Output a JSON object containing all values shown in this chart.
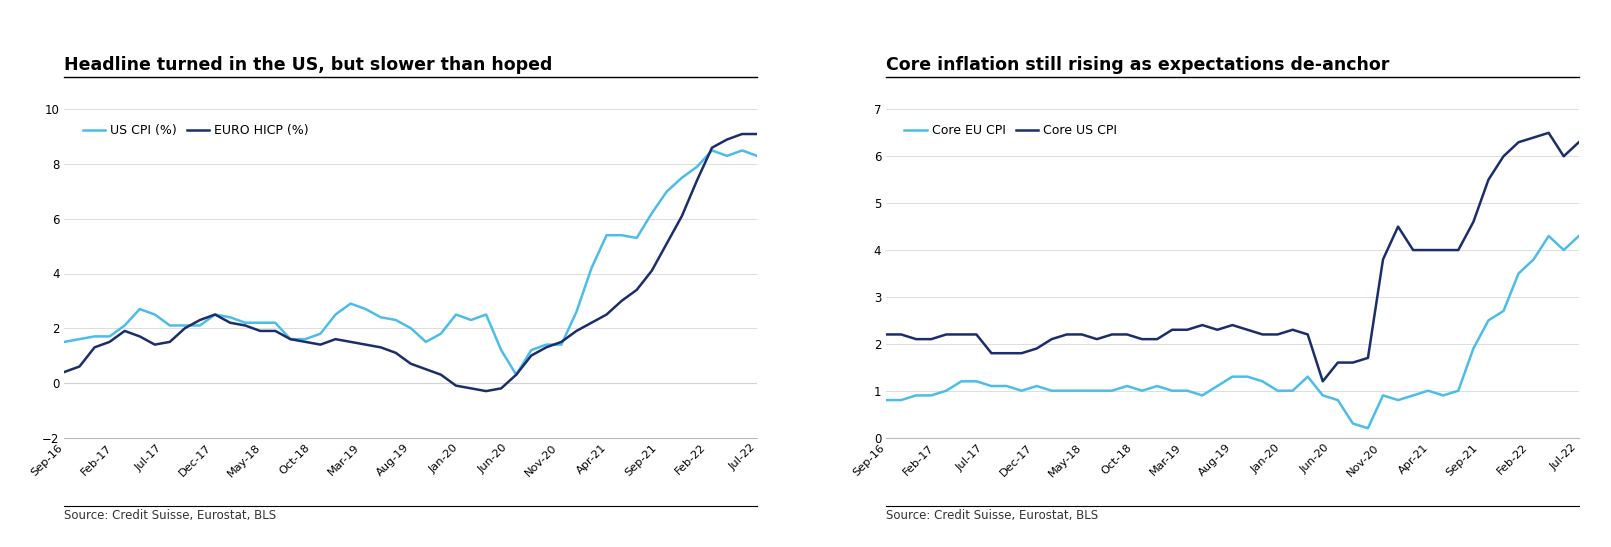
{
  "chart1": {
    "title": "Headline turned in the US, but slower than hoped",
    "source": "Source: Credit Suisse, Eurostat, BLS",
    "ylim": [
      -2,
      10
    ],
    "yticks": [
      -2,
      0,
      2,
      4,
      6,
      8,
      10
    ],
    "xtick_labels": [
      "Sep-16",
      "Feb-17",
      "Jul-17",
      "Dec-17",
      "May-18",
      "Oct-18",
      "Mar-19",
      "Aug-19",
      "Jan-20",
      "Jun-20",
      "Nov-20",
      "Apr-21",
      "Sep-21",
      "Feb-22",
      "Jul-22"
    ],
    "legend": [
      "EURO HICP (%)",
      "US CPI (%)"
    ],
    "colors": [
      "#1b2d6b",
      "#4bbde8"
    ],
    "euro_hicp": [
      0.4,
      0.6,
      1.3,
      1.5,
      1.9,
      1.7,
      1.4,
      1.5,
      2.0,
      2.3,
      2.5,
      2.2,
      2.1,
      1.9,
      1.9,
      1.6,
      1.5,
      1.4,
      1.6,
      1.5,
      1.4,
      1.3,
      1.1,
      0.7,
      0.5,
      0.3,
      -0.1,
      -0.2,
      -0.3,
      -0.2,
      0.3,
      1.0,
      1.3,
      1.5,
      1.9,
      2.2,
      2.5,
      3.0,
      3.4,
      4.1,
      5.1,
      6.1,
      7.4,
      8.6,
      8.9,
      9.1,
      9.1
    ],
    "us_cpi": [
      1.5,
      1.6,
      1.7,
      1.7,
      2.1,
      2.7,
      2.5,
      2.1,
      2.1,
      2.1,
      2.5,
      2.4,
      2.2,
      2.2,
      2.2,
      1.6,
      1.6,
      1.8,
      2.5,
      2.9,
      2.7,
      2.4,
      2.3,
      2.0,
      1.5,
      1.8,
      2.5,
      2.3,
      2.5,
      1.2,
      0.3,
      1.2,
      1.4,
      1.4,
      2.6,
      4.2,
      5.4,
      5.4,
      5.3,
      6.2,
      7.0,
      7.5,
      7.9,
      8.5,
      8.3,
      8.5,
      8.3
    ],
    "n_points": 47
  },
  "chart2": {
    "title": "Core inflation still rising as expectations de-anchor",
    "source": "Source: Credit Suisse, Eurostat, BLS",
    "ylim": [
      0,
      7
    ],
    "yticks": [
      0,
      1,
      2,
      3,
      4,
      5,
      6,
      7
    ],
    "xtick_labels": [
      "Sep-16",
      "Feb-17",
      "Jul-17",
      "Dec-17",
      "May-18",
      "Oct-18",
      "Mar-19",
      "Aug-19",
      "Jan-20",
      "Jun-20",
      "Nov-20",
      "Apr-21",
      "Sep-21",
      "Feb-22",
      "Jul-22"
    ],
    "legend": [
      "Core US CPI",
      "Core EU CPI"
    ],
    "colors": [
      "#1b2d6b",
      "#4bbde8"
    ],
    "core_us": [
      2.2,
      2.2,
      2.1,
      2.1,
      2.2,
      2.2,
      2.2,
      1.8,
      1.8,
      1.8,
      1.9,
      2.1,
      2.2,
      2.2,
      2.1,
      2.2,
      2.2,
      2.1,
      2.1,
      2.3,
      2.3,
      2.4,
      2.3,
      2.4,
      2.3,
      2.2,
      2.2,
      2.3,
      2.2,
      1.2,
      1.6,
      1.6,
      1.7,
      3.8,
      4.5,
      4.0,
      4.0,
      4.0,
      4.0,
      4.6,
      5.5,
      6.0,
      6.3,
      6.4,
      6.5,
      6.0,
      6.3
    ],
    "core_eu": [
      0.8,
      0.8,
      0.9,
      0.9,
      1.0,
      1.2,
      1.2,
      1.1,
      1.1,
      1.0,
      1.1,
      1.0,
      1.0,
      1.0,
      1.0,
      1.0,
      1.1,
      1.0,
      1.1,
      1.0,
      1.0,
      0.9,
      1.1,
      1.3,
      1.3,
      1.2,
      1.0,
      1.0,
      1.3,
      0.9,
      0.8,
      0.3,
      0.2,
      0.9,
      0.8,
      0.9,
      1.0,
      0.9,
      1.0,
      1.9,
      2.5,
      2.7,
      3.5,
      3.8,
      4.3,
      4.0,
      4.3
    ],
    "n_points": 47
  },
  "fig_width": 16.11,
  "fig_height": 5.47,
  "dpi": 100
}
